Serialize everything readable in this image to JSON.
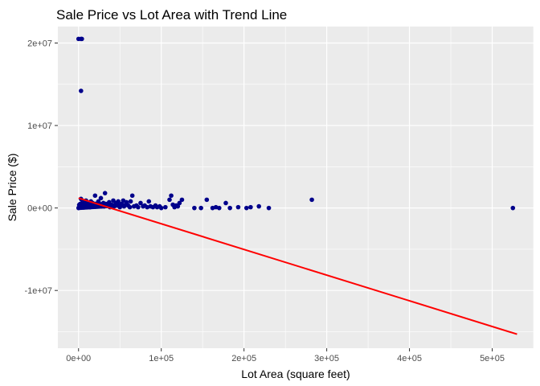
{
  "chart_data": {
    "type": "scatter",
    "title": "Sale Price vs Lot Area with Trend Line",
    "xlabel": "Lot Area (square feet)",
    "ylabel": "Sale Price ($)",
    "xlim": [
      -25000,
      550000
    ],
    "ylim": [
      -17000000,
      22000000
    ],
    "x_ticks": [
      {
        "value": 0,
        "label": "0e+00"
      },
      {
        "value": 100000,
        "label": "1e+05"
      },
      {
        "value": 200000,
        "label": "2e+05"
      },
      {
        "value": 300000,
        "label": "3e+05"
      },
      {
        "value": 400000,
        "label": "4e+05"
      },
      {
        "value": 500000,
        "label": "5e+05"
      }
    ],
    "y_ticks": [
      {
        "value": -10000000,
        "label": "-1e+07"
      },
      {
        "value": 0,
        "label": "0e+00"
      },
      {
        "value": 10000000,
        "label": "1e+07"
      },
      {
        "value": 20000000,
        "label": "2e+07"
      }
    ],
    "grid": true,
    "background": "#ebebeb",
    "colors": {
      "points": "#00008b",
      "trend": "#ff0000",
      "grid": "#ffffff"
    },
    "series": [
      {
        "type": "scatter",
        "points": [
          [
            0,
            20500000
          ],
          [
            3000,
            20500000
          ],
          [
            4000,
            20500000
          ],
          [
            3000,
            14200000
          ],
          [
            0,
            0
          ],
          [
            1000,
            200000
          ],
          [
            2000,
            500000
          ],
          [
            3000,
            1100000
          ],
          [
            4000,
            300000
          ],
          [
            5000,
            800000
          ],
          [
            6000,
            100000
          ],
          [
            7000,
            600000
          ],
          [
            8000,
            400000
          ],
          [
            9000,
            900000
          ],
          [
            10000,
            200000
          ],
          [
            11000,
            700000
          ],
          [
            12000,
            300000
          ],
          [
            13000,
            500000
          ],
          [
            14000,
            100000
          ],
          [
            15000,
            800000
          ],
          [
            16000,
            400000
          ],
          [
            17000,
            600000
          ],
          [
            18000,
            200000
          ],
          [
            19000,
            500000
          ],
          [
            20000,
            1500000
          ],
          [
            22000,
            300000
          ],
          [
            24000,
            800000
          ],
          [
            25000,
            200000
          ],
          [
            27000,
            1200000
          ],
          [
            28000,
            400000
          ],
          [
            30000,
            600000
          ],
          [
            31000,
            200000
          ],
          [
            32000,
            1800000
          ],
          [
            33000,
            500000
          ],
          [
            35000,
            300000
          ],
          [
            37000,
            700000
          ],
          [
            38000,
            100000
          ],
          [
            40000,
            400000
          ],
          [
            42000,
            900000
          ],
          [
            43000,
            200000
          ],
          [
            45000,
            600000
          ],
          [
            47000,
            300000
          ],
          [
            48000,
            800000
          ],
          [
            50000,
            100000
          ],
          [
            52000,
            500000
          ],
          [
            54000,
            900000
          ],
          [
            55000,
            200000
          ],
          [
            57000,
            400000
          ],
          [
            58000,
            700000
          ],
          [
            60000,
            300000
          ],
          [
            62000,
            100000
          ],
          [
            63000,
            800000
          ],
          [
            65000,
            1500000
          ],
          [
            67000,
            200000
          ],
          [
            70000,
            300000
          ],
          [
            72000,
            100000
          ],
          [
            75000,
            600000
          ],
          [
            78000,
            200000
          ],
          [
            80000,
            300000
          ],
          [
            83000,
            100000
          ],
          [
            85000,
            800000
          ],
          [
            87000,
            200000
          ],
          [
            90000,
            100000
          ],
          [
            93000,
            300000
          ],
          [
            95000,
            100000
          ],
          [
            98000,
            200000
          ],
          [
            100000,
            0
          ],
          [
            105000,
            100000
          ],
          [
            110000,
            1000000
          ],
          [
            112000,
            1500000
          ],
          [
            114000,
            400000
          ],
          [
            116000,
            100000
          ],
          [
            118000,
            300000
          ],
          [
            120000,
            200000
          ],
          [
            122000,
            600000
          ],
          [
            125000,
            1000000
          ],
          [
            140000,
            0
          ],
          [
            148000,
            0
          ],
          [
            155000,
            1000000
          ],
          [
            162000,
            0
          ],
          [
            166000,
            100000
          ],
          [
            170000,
            0
          ],
          [
            178000,
            600000
          ],
          [
            183000,
            0
          ],
          [
            193000,
            100000
          ],
          [
            203000,
            0
          ],
          [
            208000,
            100000
          ],
          [
            218000,
            200000
          ],
          [
            230000,
            0
          ],
          [
            282000,
            1000000
          ],
          [
            525000,
            0
          ]
        ]
      },
      {
        "type": "line",
        "points": [
          [
            0,
            1200000
          ],
          [
            530000,
            -15300000
          ]
        ]
      }
    ]
  }
}
